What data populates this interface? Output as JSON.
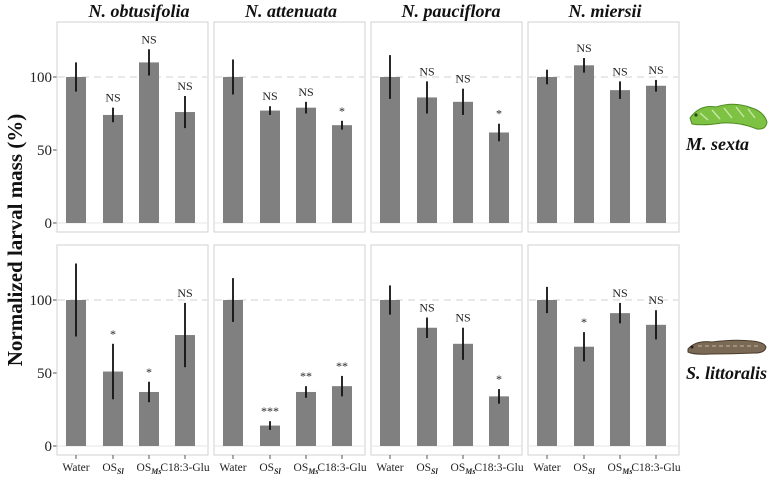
{
  "chart_data": {
    "type": "bar",
    "ylabel": "Normalized larval mass (%)",
    "ylim": [
      0,
      135
    ],
    "yticks": [
      0,
      50,
      100
    ],
    "reference_line": 100,
    "categories": [
      "Water",
      "OS_Sl",
      "OS_Ms",
      "C18:3-Glu"
    ],
    "category_labels": [
      {
        "main": "Water",
        "sub": ""
      },
      {
        "main": "OS",
        "sub": "Sl"
      },
      {
        "main": "OS",
        "sub": "Ms"
      },
      {
        "main": "C18:3-Glu",
        "sub": ""
      }
    ],
    "column_titles": [
      "N. obtusifolia",
      "N. attenuata",
      "N. pauciflora",
      "N. miersii"
    ],
    "rows": [
      {
        "label": "M. sexta",
        "panels": [
          {
            "species": "N. obtusifolia",
            "values": [
              100,
              74,
              110,
              76
            ],
            "errors": [
              10,
              5,
              9,
              11
            ],
            "labels": [
              "",
              "NS",
              "NS",
              "NS"
            ]
          },
          {
            "species": "N. attenuata",
            "values": [
              100,
              77,
              79,
              67
            ],
            "errors": [
              12,
              3,
              4,
              3
            ],
            "labels": [
              "",
              "NS",
              "NS",
              "*"
            ]
          },
          {
            "species": "N. pauciflora",
            "values": [
              100,
              86,
              83,
              62
            ],
            "errors": [
              15,
              11,
              9,
              6
            ],
            "labels": [
              "",
              "NS",
              "NS",
              "*"
            ]
          },
          {
            "species": "N. miersii",
            "values": [
              100,
              108,
              91,
              94
            ],
            "errors": [
              5,
              5,
              6,
              4
            ],
            "labels": [
              "",
              "NS",
              "NS",
              "NS"
            ]
          }
        ]
      },
      {
        "label": "S. littoralis",
        "panels": [
          {
            "species": "N. obtusifolia",
            "values": [
              100,
              51,
              37,
              76
            ],
            "errors": [
              25,
              19,
              7,
              22
            ],
            "labels": [
              "",
              "*",
              "*",
              "NS"
            ]
          },
          {
            "species": "N. attenuata",
            "values": [
              100,
              14,
              37,
              41
            ],
            "errors": [
              15,
              3,
              4,
              7
            ],
            "labels": [
              "",
              "***",
              "**",
              "**"
            ]
          },
          {
            "species": "N. pauciflora",
            "values": [
              100,
              81,
              70,
              34
            ],
            "errors": [
              10,
              7,
              11,
              5
            ],
            "labels": [
              "",
              "NS",
              "NS",
              "*"
            ]
          },
          {
            "species": "N. miersii",
            "values": [
              100,
              68,
              91,
              83
            ],
            "errors": [
              9,
              10,
              7,
              10
            ],
            "labels": [
              "",
              "*",
              "NS",
              "NS"
            ]
          }
        ]
      }
    ],
    "colors": {
      "bar": "#808080",
      "error": "#111111",
      "reference": "#dadada",
      "m_sexta": "#7dc243",
      "s_littoralis": "#7a6a55"
    }
  }
}
